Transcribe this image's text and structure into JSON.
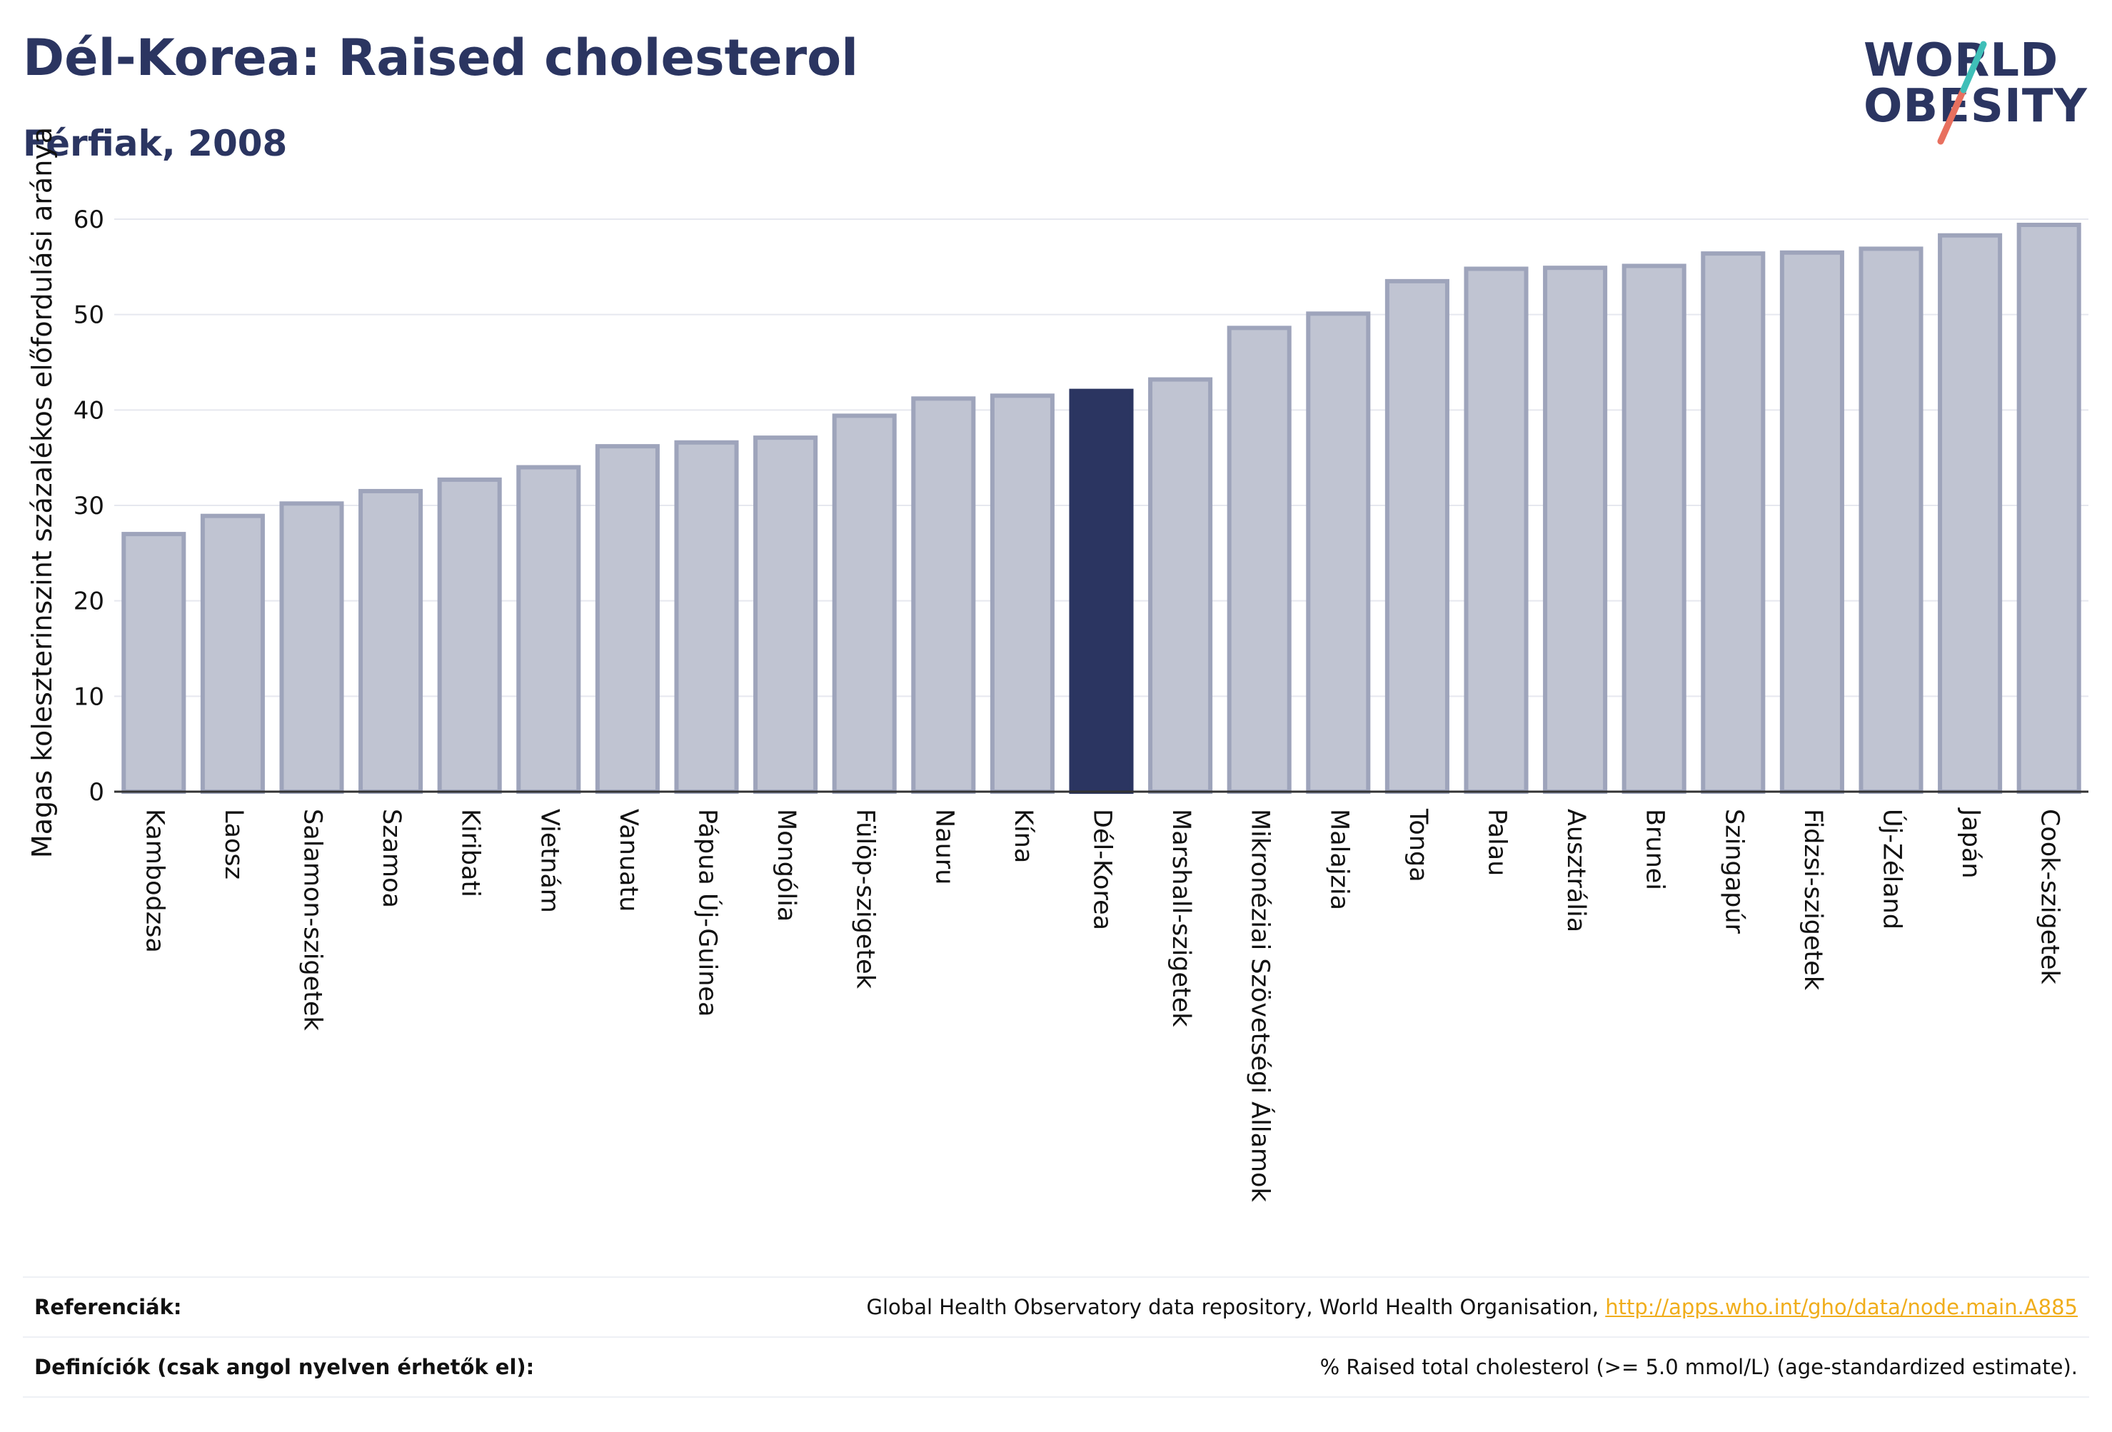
{
  "header": {
    "title": "Dél-Korea: Raised cholesterol",
    "subtitle": "Férfiak, 2008"
  },
  "logo": {
    "line1": "WORLD",
    "line2": "OBESITY",
    "accent_colors": [
      "#3fbfb8",
      "#e8705f"
    ]
  },
  "colors": {
    "bar_fill": "#c0c4d2",
    "bar_stroke": "#9ea4bb",
    "highlight_fill": "#2b3561",
    "text": "#2b3561",
    "gridline": "#e6e8ef",
    "link": "#f0ad1b"
  },
  "chart_data": {
    "type": "bar",
    "title": "Dél-Korea: Raised cholesterol",
    "subtitle": "Férfiak, 2008",
    "ylabel": "Magas koleszterinszint százalékos előfordulási aránya",
    "xlabel": "",
    "ylim": [
      0,
      60
    ],
    "yticks": [
      0,
      10,
      20,
      30,
      40,
      50,
      60
    ],
    "grid": true,
    "highlight": "Dél-Korea",
    "categories": [
      "Kambodzsa",
      "Laosz",
      "Salamon-szigetek",
      "Szamoa",
      "Kiribati",
      "Vietnám",
      "Vanuatu",
      "Pápua Új-Guinea",
      "Mongólia",
      "Fülöp-szigetek",
      "Nauru",
      "Kína",
      "Dél-Korea",
      "Marshall-szigetek",
      "Mikronéziai Szövetségi Államok",
      "Malajzia",
      "Tonga",
      "Palau",
      "Ausztrália",
      "Brunei",
      "Szingapúr",
      "Fidzsi-szigetek",
      "Új-Zéland",
      "Japán",
      "Cook-szigetek"
    ],
    "values": [
      27.0,
      28.9,
      30.2,
      31.5,
      32.7,
      34.0,
      36.2,
      36.6,
      37.1,
      39.4,
      41.2,
      41.5,
      42.0,
      43.2,
      48.6,
      50.1,
      53.5,
      54.8,
      54.9,
      55.1,
      56.4,
      56.5,
      56.9,
      58.3,
      59.4
    ]
  },
  "references": {
    "sources_label": "Referenciák:",
    "sources_text": "Global Health Observatory data repository, World Health Organisation, ",
    "sources_link": "http://apps.who.int/gho/data/node.main.A885",
    "definitions_label": "Definíciók (csak angol nyelven érhetők el):",
    "definitions_text": "% Raised total cholesterol (>= 5.0 mmol/L) (age-standardized estimate)."
  }
}
